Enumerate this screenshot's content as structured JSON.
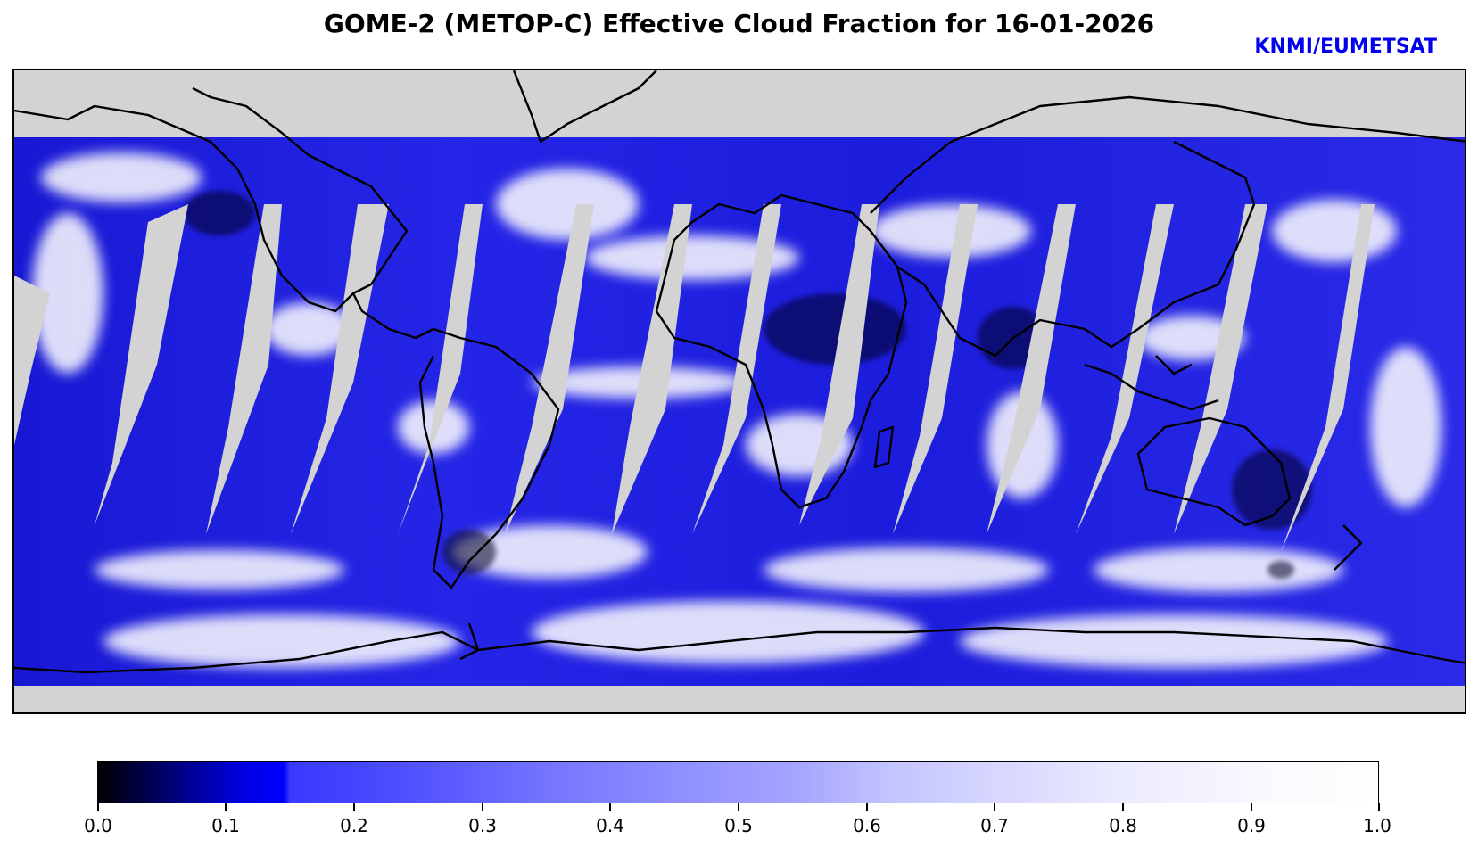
{
  "title": "GOME-2 (METOP-C) Effective Cloud Fraction for 16-01-2026",
  "credit": "KNMI/EUMETSAT",
  "colormap": {
    "stops": [
      "#000000",
      "#0000ff",
      "#3a3aff",
      "#8e8eff",
      "#ffffff"
    ],
    "background": "#d3d3d3",
    "coastline": "#000000"
  },
  "colorbar": {
    "range": [
      0.0,
      1.0
    ],
    "tick_labels": [
      "0.0",
      "0.1",
      "0.2",
      "0.3",
      "0.4",
      "0.5",
      "0.6",
      "0.7",
      "0.8",
      "0.9",
      "1.0"
    ]
  }
}
